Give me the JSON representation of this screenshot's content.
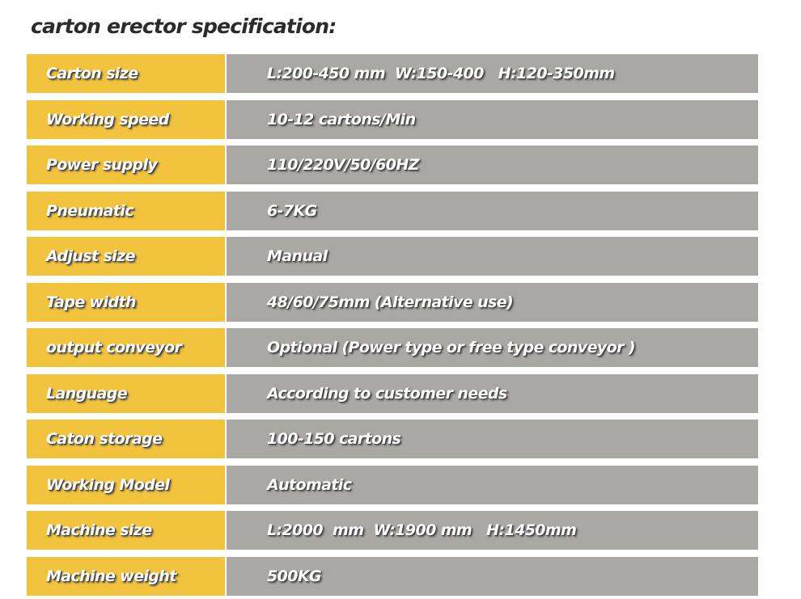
{
  "title": "carton erector specification:",
  "table": {
    "rows": [
      [
        "Carton size",
        "L:200-450 mm  W:150-400   H:120-350mm"
      ],
      [
        "Working speed",
        "10-12 cartons/Min"
      ],
      [
        "Power supply",
        "110/220V/50/60HZ"
      ],
      [
        "Pneumatic",
        "6-7KG"
      ],
      [
        "Adjust size",
        "Manual"
      ],
      [
        "Tape width",
        "48/60/75mm (Alternative use)"
      ],
      [
        "output conveyor",
        "Optional (Power type or free type conveyor )"
      ],
      [
        "Language",
        "According to customer needs"
      ],
      [
        "Caton storage",
        "100-150 cartons"
      ],
      [
        "Working Model",
        "Automatic"
      ],
      [
        "Machine size",
        "L:2000  mm  W:1900 mm   H:1450mm"
      ],
      [
        "Machine weight",
        "500KG"
      ]
    ]
  }
}
